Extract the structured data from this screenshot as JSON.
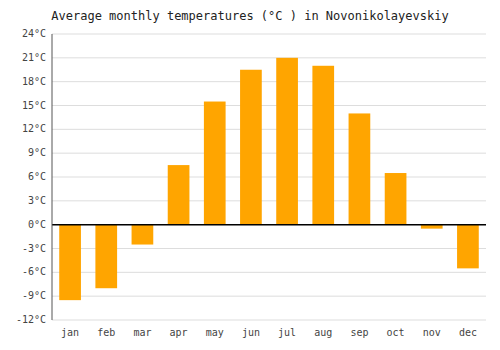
{
  "chart_data": {
    "type": "bar",
    "title": "Average monthly temperatures (°C ) in Novonikolayevskiy",
    "categories": [
      "jan",
      "feb",
      "mar",
      "apr",
      "may",
      "jun",
      "jul",
      "aug",
      "sep",
      "oct",
      "nov",
      "dec"
    ],
    "values": [
      -9.5,
      -8.0,
      -2.5,
      7.5,
      15.5,
      19.5,
      21.0,
      20.0,
      14.0,
      6.5,
      -0.5,
      -5.5
    ],
    "color": "#FFA500",
    "ylim": [
      -12,
      24
    ],
    "yticks": [
      {
        "value": -12,
        "label": "-12°C"
      },
      {
        "value": -9,
        "label": "-9°C"
      },
      {
        "value": -6,
        "label": "-6°C"
      },
      {
        "value": -3,
        "label": "-3°C"
      },
      {
        "value": 0,
        "label": "0°C"
      },
      {
        "value": 3,
        "label": "3°C"
      },
      {
        "value": 6,
        "label": "6°C"
      },
      {
        "value": 9,
        "label": "9°C"
      },
      {
        "value": 12,
        "label": "12°C"
      },
      {
        "value": 15,
        "label": "15°C"
      },
      {
        "value": 18,
        "label": "18°C"
      },
      {
        "value": 21,
        "label": "21°C"
      },
      {
        "value": 24,
        "label": "24°C"
      }
    ],
    "grid": true
  }
}
